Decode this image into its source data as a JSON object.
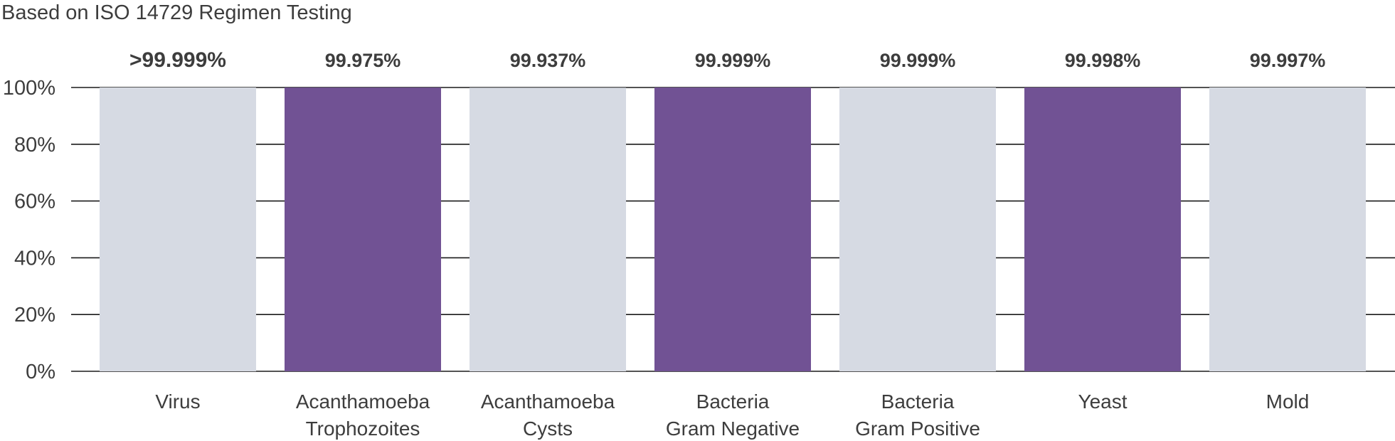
{
  "subtitle": "Based on ISO 14729 Regimen Testing",
  "chart_data": {
    "type": "bar",
    "title": "",
    "subtitle": "Based on ISO 14729 Regimen Testing",
    "xlabel": "",
    "ylabel": "",
    "ylim": [
      0,
      100
    ],
    "yticks": [
      "0%",
      "20%",
      "40%",
      "60%",
      "80%",
      "100%"
    ],
    "grid": true,
    "categories": [
      [
        "Virus"
      ],
      [
        "Acanthamoeba",
        "Trophozoites"
      ],
      [
        "Acanthamoeba",
        "Cysts"
      ],
      [
        "Bacteria",
        "Gram Negative"
      ],
      [
        "Bacteria",
        "Gram Positive"
      ],
      [
        "Yeast"
      ],
      [
        "Mold"
      ]
    ],
    "values": [
      99.999,
      99.975,
      99.937,
      99.999,
      99.999,
      99.998,
      99.997
    ],
    "data_labels": [
      ">99.999%",
      "99.975%",
      "99.937%",
      "99.999%",
      "99.999%",
      "99.998%",
      "99.997%"
    ],
    "colors": [
      "#d6dae3",
      "#715294",
      "#d6dae3",
      "#715294",
      "#d6dae3",
      "#715294",
      "#d6dae3"
    ],
    "gridline_color": "#1a1a1a"
  }
}
